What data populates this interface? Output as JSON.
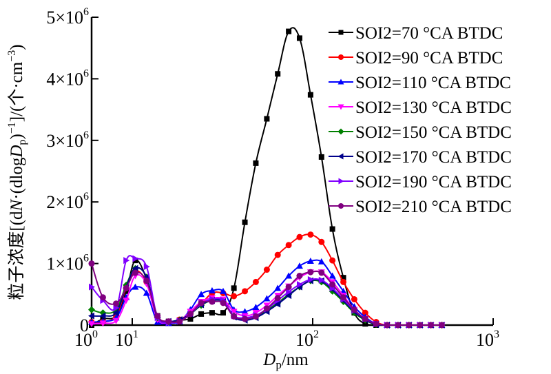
{
  "chart_data": {
    "type": "line",
    "title": "",
    "xlabel": "Dp/nm",
    "xlabel_parts": {
      "main": "D",
      "sub": "p",
      "rest": "/nm"
    },
    "ylabel": "粒子浓度[(dN·(dlogDp)^-1]/(个·cm^-3)",
    "ylabel_parts": {
      "pre": "粒子浓度[(d",
      "N": "N",
      "mid": "·(dlog",
      "D": "D",
      "sub": "p",
      "post": ")",
      "sup1": "−1",
      "post2": "]/(个·cm",
      "sup2": "−3",
      "end": ")"
    },
    "xscale": "log",
    "xlim": [
      1,
      1000
    ],
    "ylim": [
      0,
      5000000
    ],
    "grid": false,
    "legend_position": "top-right",
    "x_ticks": [
      {
        "base": "10",
        "exp": "0",
        "value": 1
      },
      {
        "base": "10",
        "exp": "1",
        "value": 10
      },
      {
        "base": "10",
        "exp": "2",
        "value": 100
      },
      {
        "base": "10",
        "exp": "3",
        "value": 1000
      }
    ],
    "y_ticks": [
      {
        "label": "0",
        "value": 0
      },
      {
        "label": "1×10",
        "exp": "6",
        "value": 1000000
      },
      {
        "label": "2×10",
        "exp": "6",
        "value": 2000000
      },
      {
        "label": "3×10",
        "exp": "6",
        "value": 3000000
      },
      {
        "label": "4×10",
        "exp": "6",
        "value": 4000000
      },
      {
        "label": "5×10",
        "exp": "6",
        "value": 5000000
      }
    ],
    "y_unit": 1000000,
    "x": [
      1.0,
      1.9,
      4.0,
      7.1,
      10.4,
      12.0,
      13.8,
      15.9,
      18.3,
      21.0,
      24.1,
      27.7,
      31.9,
      36.6,
      42.1,
      48.4,
      55.7,
      64.0,
      73.6,
      84.6,
      97.3,
      111.9,
      128.6,
      147.9,
      170.0,
      195.5,
      224.7,
      258.4,
      297.1,
      341.6,
      392.8,
      451.6,
      519.3
    ],
    "series": [
      {
        "name": "SOI2=70 °CA BTDC",
        "color": "#000000",
        "marker": "square",
        "values": [
          0.0,
          0.1,
          0.15,
          0.55,
          1.05,
          0.75,
          0.15,
          0.06,
          0.08,
          0.1,
          0.18,
          0.2,
          0.2,
          0.6,
          1.67,
          2.63,
          3.35,
          4.08,
          4.77,
          4.66,
          3.74,
          2.73,
          1.56,
          0.77,
          0.2,
          0.02,
          0.0,
          0.0,
          0.0,
          0.0,
          0.0,
          0.0,
          0.0
        ]
      },
      {
        "name": "SOI2=90 °CA BTDC",
        "color": "#ff0000",
        "marker": "circle",
        "values": [
          0.05,
          0.05,
          0.15,
          0.6,
          0.88,
          0.7,
          0.13,
          0.05,
          0.09,
          0.2,
          0.34,
          0.52,
          0.52,
          0.47,
          0.55,
          0.7,
          0.9,
          1.14,
          1.3,
          1.43,
          1.47,
          1.35,
          1.05,
          0.7,
          0.42,
          0.2,
          0.05,
          0.0,
          0.0,
          0.0,
          0.0,
          0.0,
          0.0
        ]
      },
      {
        "name": "SOI2=110 °CA BTDC",
        "color": "#0000ff",
        "marker": "triangle-up",
        "values": [
          0.05,
          0.06,
          0.12,
          0.45,
          0.62,
          0.52,
          0.05,
          0.03,
          0.06,
          0.25,
          0.5,
          0.56,
          0.55,
          0.25,
          0.22,
          0.29,
          0.43,
          0.6,
          0.8,
          0.96,
          1.04,
          1.03,
          0.8,
          0.55,
          0.3,
          0.13,
          0.02,
          0.0,
          0.0,
          0.0,
          0.0,
          0.0,
          0.0
        ]
      },
      {
        "name": "SOI2=130 °CA BTDC",
        "color": "#ff00ff",
        "marker": "triangle-down",
        "values": [
          0.02,
          0.03,
          0.07,
          0.4,
          0.8,
          0.67,
          0.09,
          0.04,
          0.07,
          0.22,
          0.38,
          0.44,
          0.42,
          0.22,
          0.15,
          0.2,
          0.32,
          0.48,
          0.63,
          0.77,
          0.86,
          0.86,
          0.7,
          0.48,
          0.25,
          0.1,
          0.02,
          0.0,
          0.0,
          0.0,
          0.0,
          0.0,
          0.0
        ]
      },
      {
        "name": "SOI2=150 °CA BTDC",
        "color": "#008000",
        "marker": "diamond",
        "values": [
          0.25,
          0.2,
          0.25,
          0.65,
          0.92,
          0.78,
          0.12,
          0.05,
          0.08,
          0.18,
          0.32,
          0.4,
          0.38,
          0.15,
          0.1,
          0.14,
          0.24,
          0.36,
          0.5,
          0.62,
          0.72,
          0.7,
          0.55,
          0.38,
          0.2,
          0.08,
          0.01,
          0.0,
          0.0,
          0.0,
          0.0,
          0.0,
          0.0
        ]
      },
      {
        "name": "SOI2=170 °CA BTDC",
        "color": "#00008b",
        "marker": "triangle-left",
        "values": [
          0.15,
          0.15,
          0.2,
          0.62,
          0.92,
          0.78,
          0.12,
          0.06,
          0.09,
          0.18,
          0.33,
          0.4,
          0.38,
          0.13,
          0.08,
          0.12,
          0.22,
          0.34,
          0.48,
          0.62,
          0.72,
          0.72,
          0.58,
          0.4,
          0.22,
          0.09,
          0.01,
          0.0,
          0.0,
          0.0,
          0.0,
          0.0,
          0.0
        ]
      },
      {
        "name": "SOI2=190 °CA BTDC",
        "color": "#8000ff",
        "marker": "triangle-right",
        "values": [
          0.62,
          0.4,
          0.28,
          1.05,
          1.08,
          0.95,
          0.12,
          0.04,
          0.06,
          0.18,
          0.35,
          0.42,
          0.4,
          0.15,
          0.12,
          0.16,
          0.26,
          0.4,
          0.54,
          0.66,
          0.74,
          0.73,
          0.6,
          0.42,
          0.24,
          0.1,
          0.02,
          0.0,
          0.0,
          0.0,
          0.0,
          0.0,
          0.0
        ]
      },
      {
        "name": "SOI2=210 °CA BTDC",
        "color": "#800080",
        "marker": "circle",
        "values": [
          1.0,
          0.45,
          0.35,
          0.6,
          0.85,
          0.72,
          0.15,
          0.06,
          0.06,
          0.18,
          0.36,
          0.38,
          0.36,
          0.14,
          0.1,
          0.14,
          0.27,
          0.44,
          0.62,
          0.8,
          0.86,
          0.85,
          0.66,
          0.45,
          0.25,
          0.1,
          0.02,
          0.0,
          0.0,
          0.0,
          0.0,
          0.0,
          0.0
        ]
      }
    ]
  }
}
